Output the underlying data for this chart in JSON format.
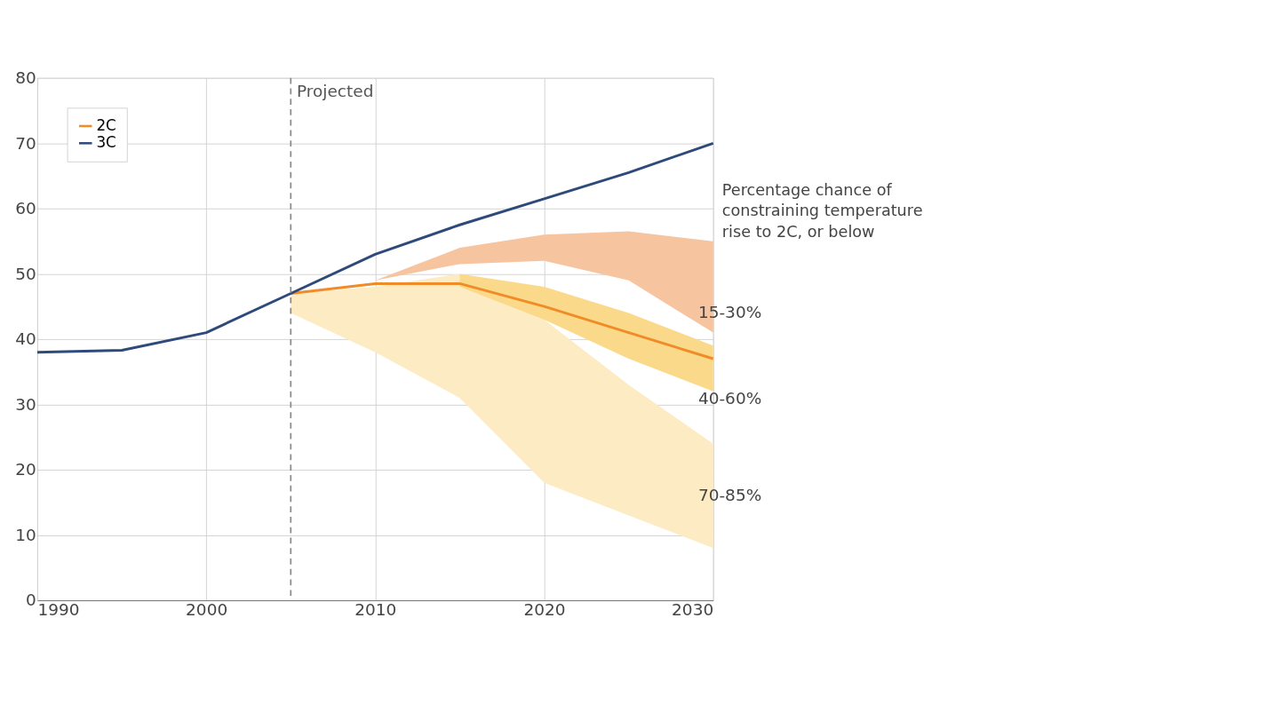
{
  "chart_data": {
    "type": "line",
    "x": [
      1990,
      1995,
      2000,
      2005,
      2010,
      2015,
      2020,
      2025,
      2030
    ],
    "series": [
      {
        "type": "area",
        "color": "#fdebc4",
        "x": [
          2005,
          2010,
          2015,
          2020,
          2025,
          2030
        ],
        "values": [
          null,
          null,
          null,
          null,
          null,
          null
        ],
        "lower": [
          44,
          38,
          31,
          18,
          13,
          8
        ],
        "upper": [
          47,
          48,
          50,
          43,
          33,
          24
        ]
      },
      {
        "type": "area",
        "color": "#fbd98a",
        "x": [
          2015,
          2020,
          2025,
          2030
        ],
        "values": [
          null,
          null,
          null,
          null
        ],
        "lower": [
          48,
          43,
          37,
          32
        ],
        "upper": [
          50,
          48,
          44,
          39
        ]
      },
      {
        "type": "area",
        "color": "#f7c4a0",
        "x": [
          2010,
          2015,
          2020,
          2025,
          2030
        ],
        "values": [
          null,
          null,
          null,
          null,
          null
        ],
        "lower": [
          49,
          51.5,
          52,
          49,
          41
        ],
        "upper": [
          49,
          54,
          56,
          56.5,
          55
        ]
      },
      {
        "type": "line",
        "name": "2C",
        "color": "#f08c28",
        "x": [
          2005,
          2010,
          2015,
          2020,
          2025,
          2030
        ],
        "values": [
          47,
          48.5,
          48.5,
          45,
          41,
          37
        ]
      },
      {
        "type": "line",
        "name": "3C",
        "color": "#2e4a7a",
        "values": [
          38,
          38.3,
          41,
          47,
          53,
          57.5,
          61.5,
          65.5,
          70
        ]
      }
    ],
    "xlim": [
      1990,
      2030
    ],
    "xticks": [
      1990,
      2000,
      2010,
      2020,
      2030
    ],
    "ylim": [
      0,
      80
    ],
    "yticks": [
      0,
      10,
      20,
      30,
      40,
      50,
      60,
      70,
      80
    ],
    "grid": true,
    "legend": "top left",
    "marker": "none",
    "line_style": "solid",
    "ref_lines": [
      {
        "axis": "x",
        "value": 2005,
        "label": "Projected",
        "color": "#888888",
        "line_style": "dashed"
      }
    ],
    "annotations": [
      "Percentage chance of\nconstraining temperature\nrise to 2C, or below",
      "15-30%",
      "40-60%",
      "70-85%"
    ]
  }
}
